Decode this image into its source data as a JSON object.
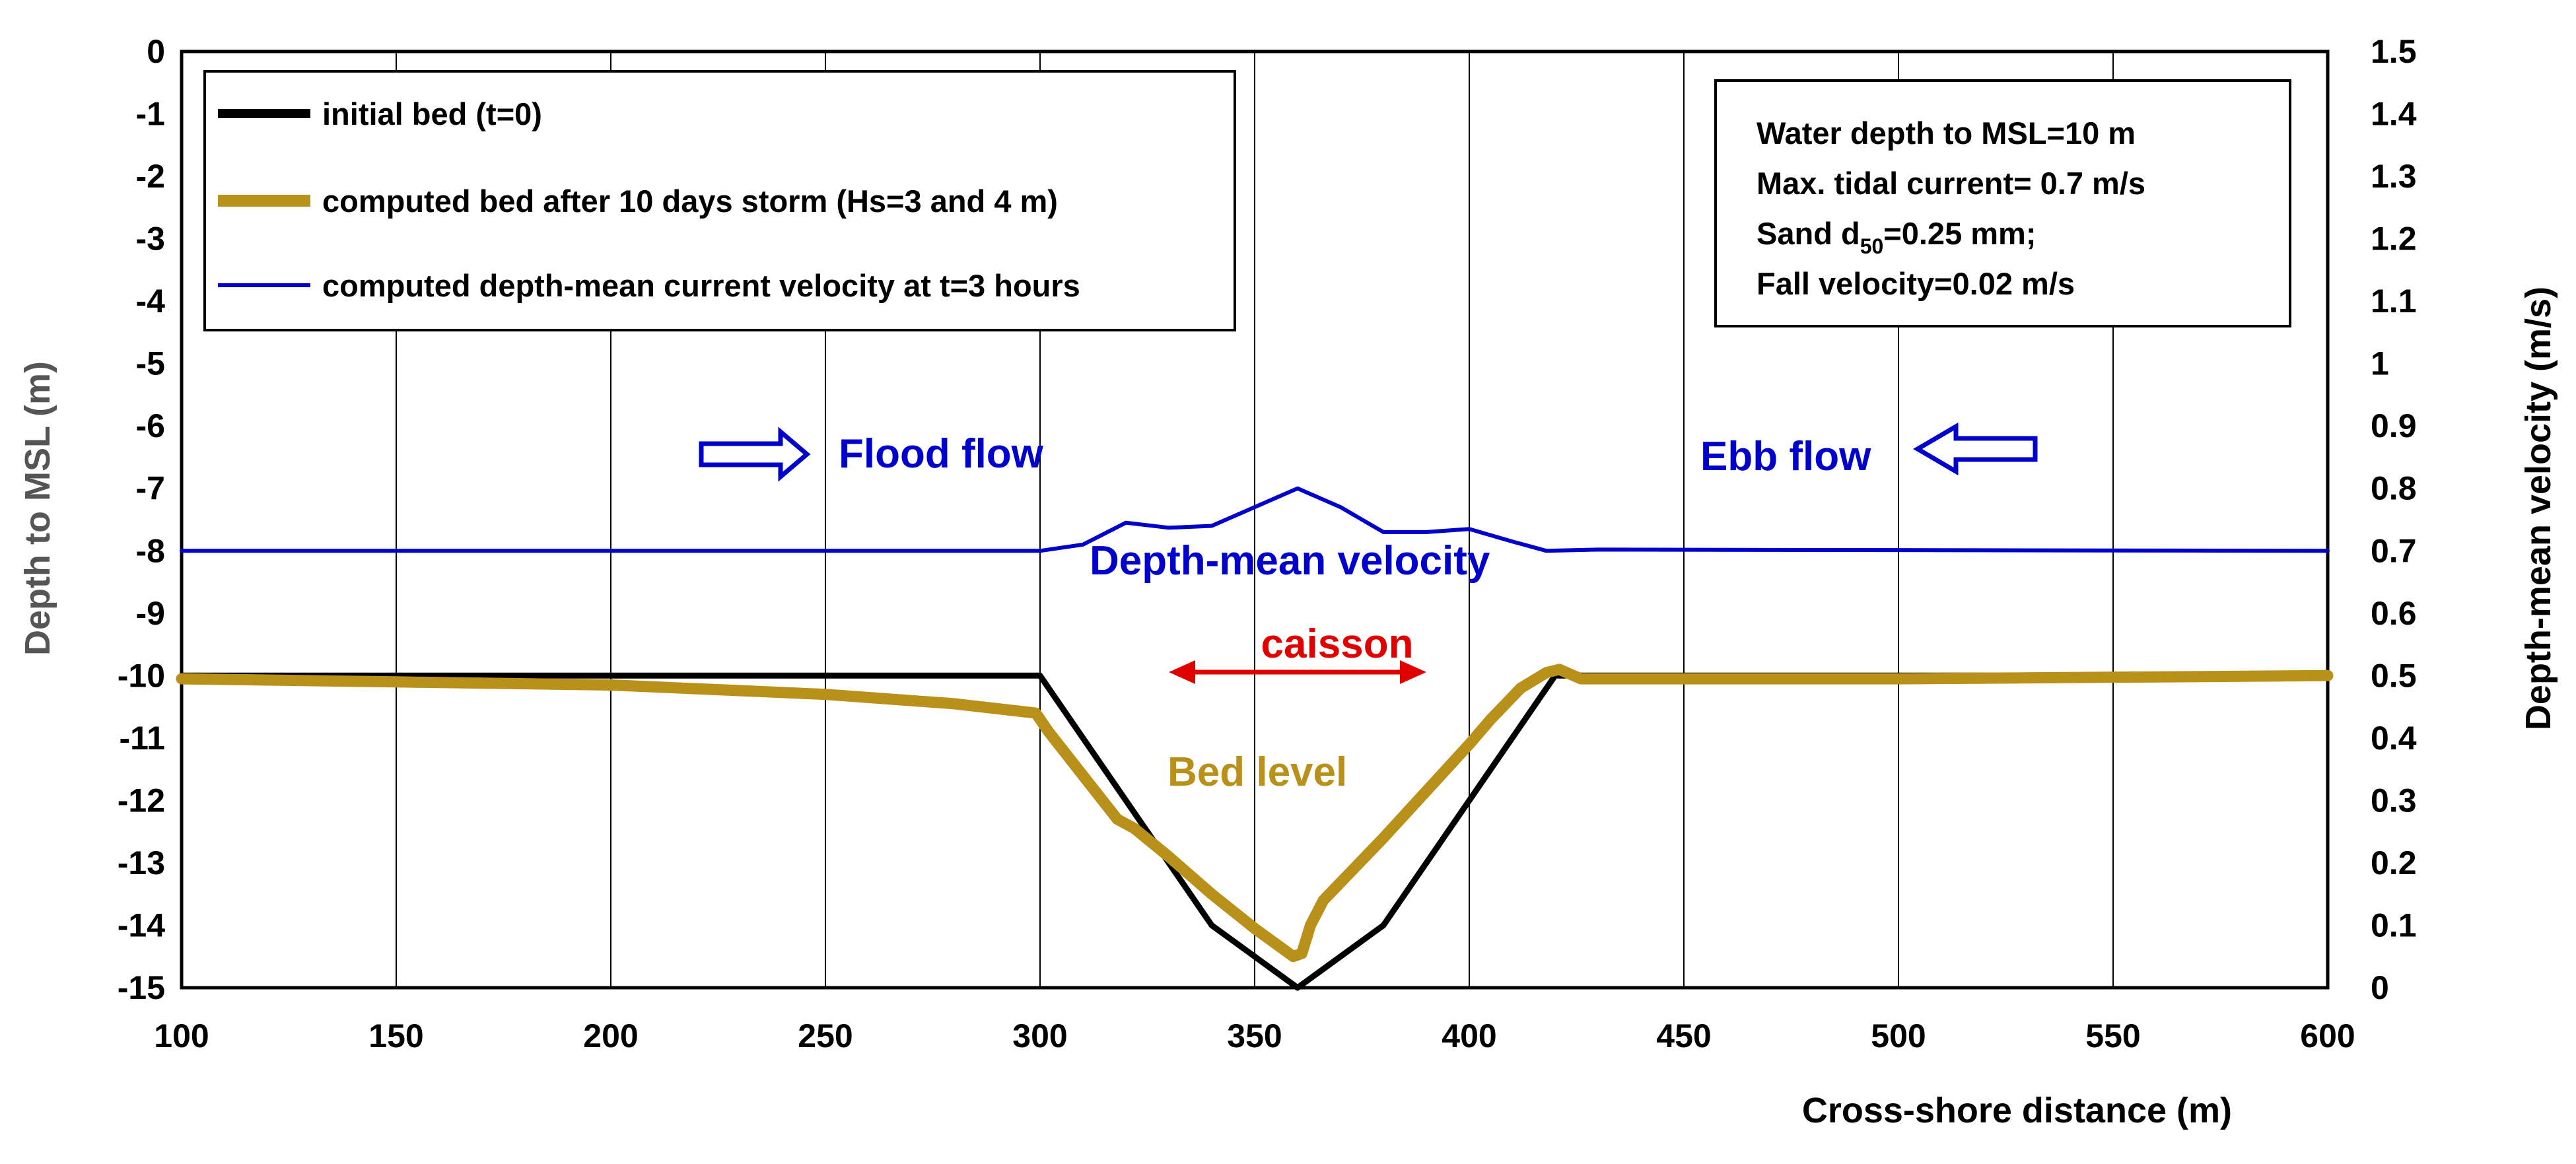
{
  "chart_data": {
    "type": "line",
    "xlabel": "Cross-shore distance (m)",
    "ylabel": "Depth to MSL (m)",
    "y2label": "Depth-mean velocity (m/s)",
    "xlim": [
      100,
      600
    ],
    "ylim": [
      -15,
      0
    ],
    "y2lim": [
      0,
      1.5
    ],
    "grid": "vertical",
    "x_ticks": [
      "100",
      "150",
      "200",
      "250",
      "300",
      "350",
      "400",
      "450",
      "500",
      "550",
      "600"
    ],
    "y_ticks": [
      "0",
      "-1",
      "-2",
      "-3",
      "-4",
      "-5",
      "-6",
      "-7",
      "-8",
      "-9",
      "-10",
      "-11",
      "-12",
      "-13",
      "-14",
      "-15"
    ],
    "y2_ticks": [
      "1.5",
      "1.4",
      "1.3",
      "1.2",
      "1.1",
      "1",
      "0.9",
      "0.8",
      "0.7",
      "0.6",
      "0.5",
      "0.4",
      "0.3",
      "0.2",
      "0.1",
      "0"
    ],
    "series": [
      {
        "name": "initial bed (t=0)",
        "color": "#000000",
        "axis": "left",
        "points": [
          [
            100,
            -10
          ],
          [
            300,
            -10
          ],
          [
            340,
            -14
          ],
          [
            360,
            -15
          ],
          [
            380,
            -14
          ],
          [
            420,
            -10
          ],
          [
            600,
            -10
          ]
        ]
      },
      {
        "name": "computed bed after 10 days storm (Hs=3 and 4 m)",
        "color": "#B8901A",
        "axis": "left",
        "points": [
          [
            100,
            -10.05
          ],
          [
            150,
            -10.1
          ],
          [
            200,
            -10.15
          ],
          [
            250,
            -10.3
          ],
          [
            280,
            -10.45
          ],
          [
            299,
            -10.6
          ],
          [
            302,
            -10.9
          ],
          [
            310,
            -11.6
          ],
          [
            318,
            -12.3
          ],
          [
            322,
            -12.45
          ],
          [
            330,
            -12.9
          ],
          [
            340,
            -13.5
          ],
          [
            350,
            -14.05
          ],
          [
            357,
            -14.4
          ],
          [
            359,
            -14.5
          ],
          [
            361,
            -14.45
          ],
          [
            363,
            -14
          ],
          [
            366,
            -13.6
          ],
          [
            380,
            -12.6
          ],
          [
            400,
            -11.1
          ],
          [
            405,
            -10.7
          ],
          [
            412,
            -10.2
          ],
          [
            418,
            -9.95
          ],
          [
            421,
            -9.9
          ],
          [
            426,
            -10.05
          ],
          [
            440,
            -10.05
          ],
          [
            500,
            -10.05
          ],
          [
            600,
            -10
          ]
        ]
      },
      {
        "name": "computed depth-mean current velocity at t=3 hours",
        "color": "#0000CC",
        "axis": "right",
        "points": [
          [
            100,
            0.7
          ],
          [
            300,
            0.7
          ],
          [
            310,
            0.71
          ],
          [
            320,
            0.745
          ],
          [
            330,
            0.737
          ],
          [
            340,
            0.74
          ],
          [
            350,
            0.77
          ],
          [
            360,
            0.8
          ],
          [
            370,
            0.77
          ],
          [
            380,
            0.73
          ],
          [
            390,
            0.73
          ],
          [
            400,
            0.735
          ],
          [
            410,
            0.715
          ],
          [
            418,
            0.7
          ],
          [
            430,
            0.702
          ],
          [
            600,
            0.7
          ]
        ]
      }
    ],
    "annotations": {
      "flood": "Flood flow",
      "ebb": "Ebb flow",
      "velocity_label": "Depth-mean velocity",
      "caisson": "caisson",
      "bed_label": "Bed level",
      "caisson_range": [
        330,
        390
      ]
    },
    "info_box": {
      "line1": "Water depth to MSL=10 m",
      "line2": "Max. tidal current= 0.7 m/s",
      "line3_prefix": "Sand d",
      "line3_sub": "50",
      "line3_suffix": "=0.25 mm;",
      "line4": "Fall velocity=0.02 m/s"
    },
    "colors": {
      "flood_arrow": "#0000CC",
      "caisson_red": "#E00000",
      "axis_title_gray": "#555555",
      "grid": "#000000"
    }
  }
}
